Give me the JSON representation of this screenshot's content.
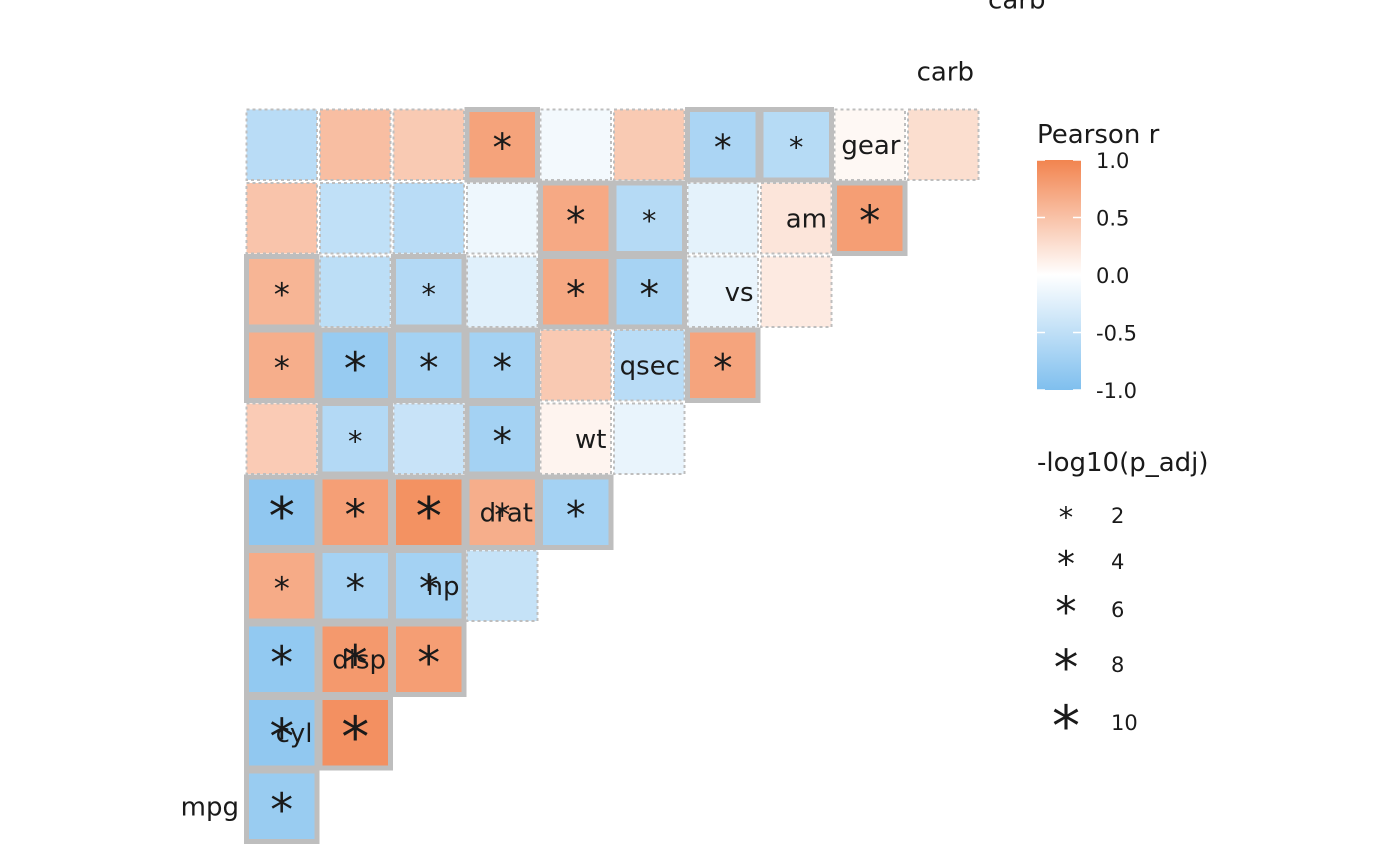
{
  "chart_data": {
    "type": "heatmap",
    "variables": [
      "mpg",
      "cyl",
      "disp",
      "hp",
      "drat",
      "wt",
      "qsec",
      "vs",
      "am",
      "gear",
      "carb"
    ],
    "cells": [
      {
        "row": "mpg",
        "col": "mpg",
        "r": -0.8,
        "p": 7,
        "sig": true
      },
      {
        "row": "mpg",
        "col": "cyl",
        "r": -0.86,
        "p": 8,
        "sig": true
      },
      {
        "row": "mpg",
        "col": "disp",
        "r": -0.85,
        "p": 7,
        "sig": true
      },
      {
        "row": "mpg",
        "col": "hp",
        "r": 0.68,
        "p": 3,
        "sig": true
      },
      {
        "row": "mpg",
        "col": "drat",
        "r": -0.87,
        "p": 9,
        "sig": true
      },
      {
        "row": "mpg",
        "col": "wt",
        "r": 0.42,
        "p": 0,
        "sig": false
      },
      {
        "row": "mpg",
        "col": "qsec",
        "r": 0.66,
        "p": 3,
        "sig": true
      },
      {
        "row": "mpg",
        "col": "vs",
        "r": 0.6,
        "p": 3,
        "sig": true
      },
      {
        "row": "mpg",
        "col": "am",
        "r": 0.48,
        "p": 0,
        "sig": false
      },
      {
        "row": "mpg",
        "col": "gear",
        "r": -0.55,
        "p": 0,
        "sig": false
      },
      {
        "row": "cyl",
        "col": "cyl",
        "r": 0.9,
        "p": 10,
        "sig": true
      },
      {
        "row": "cyl",
        "col": "disp",
        "r": 0.83,
        "p": 8,
        "sig": true
      },
      {
        "row": "cyl",
        "col": "hp",
        "r": -0.7,
        "p": 5,
        "sig": true
      },
      {
        "row": "cyl",
        "col": "drat",
        "r": 0.78,
        "p": 6,
        "sig": true
      },
      {
        "row": "cyl",
        "col": "wt",
        "r": -0.59,
        "p": 2,
        "sig": true
      },
      {
        "row": "cyl",
        "col": "qsec",
        "r": -0.81,
        "p": 7,
        "sig": true
      },
      {
        "row": "cyl",
        "col": "vs",
        "r": -0.52,
        "p": 0,
        "sig": false
      },
      {
        "row": "cyl",
        "col": "am",
        "r": -0.49,
        "p": 0,
        "sig": false
      },
      {
        "row": "cyl",
        "col": "gear",
        "r": 0.53,
        "p": 0,
        "sig": false
      },
      {
        "row": "disp",
        "col": "disp",
        "r": 0.79,
        "p": 7,
        "sig": true
      },
      {
        "row": "disp",
        "col": "hp",
        "r": -0.71,
        "p": 5,
        "sig": true
      },
      {
        "row": "disp",
        "col": "drat",
        "r": 0.89,
        "p": 9,
        "sig": true
      },
      {
        "row": "disp",
        "col": "wt",
        "r": -0.43,
        "p": 0,
        "sig": false
      },
      {
        "row": "disp",
        "col": "qsec",
        "r": -0.71,
        "p": 5,
        "sig": true
      },
      {
        "row": "disp",
        "col": "vs",
        "r": -0.59,
        "p": 2,
        "sig": true
      },
      {
        "row": "disp",
        "col": "am",
        "r": -0.55,
        "p": 0,
        "sig": false
      },
      {
        "row": "disp",
        "col": "gear",
        "r": 0.43,
        "p": 0,
        "sig": false
      },
      {
        "row": "hp",
        "col": "hp",
        "r": -0.45,
        "p": 0,
        "sig": false
      },
      {
        "row": "hp",
        "col": "drat",
        "r": 0.66,
        "p": 3,
        "sig": true
      },
      {
        "row": "hp",
        "col": "wt",
        "r": -0.71,
        "p": 5,
        "sig": true
      },
      {
        "row": "hp",
        "col": "qsec",
        "r": -0.71,
        "p": 5,
        "sig": true
      },
      {
        "row": "hp",
        "col": "vs",
        "r": -0.24,
        "p": 0,
        "sig": false
      },
      {
        "row": "hp",
        "col": "am",
        "r": -0.13,
        "p": 0,
        "sig": false
      },
      {
        "row": "hp",
        "col": "gear",
        "r": 0.75,
        "p": 5,
        "sig": true
      },
      {
        "row": "drat",
        "col": "drat",
        "r": -0.71,
        "p": 5,
        "sig": true
      },
      {
        "row": "drat",
        "col": "wt",
        "r": 0.09,
        "p": 0,
        "sig": false
      },
      {
        "row": "drat",
        "col": "qsec",
        "r": 0.44,
        "p": 0,
        "sig": false
      },
      {
        "row": "drat",
        "col": "vs",
        "r": 0.71,
        "p": 5,
        "sig": true
      },
      {
        "row": "drat",
        "col": "am",
        "r": 0.7,
        "p": 5,
        "sig": true
      },
      {
        "row": "drat",
        "col": "gear",
        "r": -0.09,
        "p": 0,
        "sig": false
      },
      {
        "row": "wt",
        "col": "wt",
        "r": -0.17,
        "p": 0,
        "sig": false
      },
      {
        "row": "wt",
        "col": "qsec",
        "r": -0.55,
        "p": 0,
        "sig": false
      },
      {
        "row": "wt",
        "col": "vs",
        "r": -0.69,
        "p": 5,
        "sig": true
      },
      {
        "row": "wt",
        "col": "am",
        "r": -0.58,
        "p": 2,
        "sig": true
      },
      {
        "row": "wt",
        "col": "gear",
        "r": 0.43,
        "p": 0,
        "sig": false
      },
      {
        "row": "qsec",
        "col": "qsec",
        "r": 0.74,
        "p": 5,
        "sig": true
      },
      {
        "row": "qsec",
        "col": "vs",
        "r": -0.17,
        "p": 0,
        "sig": false
      },
      {
        "row": "qsec",
        "col": "am",
        "r": -0.21,
        "p": 0,
        "sig": false
      },
      {
        "row": "qsec",
        "col": "gear",
        "r": -0.66,
        "p": 4,
        "sig": true
      },
      {
        "row": "vs",
        "col": "vs",
        "r": 0.17,
        "p": 0,
        "sig": false
      },
      {
        "row": "vs",
        "col": "am",
        "r": 0.21,
        "p": 0,
        "sig": false
      },
      {
        "row": "vs",
        "col": "gear",
        "r": -0.57,
        "p": 2,
        "sig": true
      },
      {
        "row": "am",
        "col": "am",
        "r": 0.79,
        "p": 6,
        "sig": true
      },
      {
        "row": "am",
        "col": "gear",
        "r": 0.06,
        "p": 0,
        "sig": false
      },
      {
        "row": "gear",
        "col": "gear",
        "r": 0.27,
        "p": 0,
        "sig": false
      }
    ],
    "color_legend": {
      "title": "Pearson r",
      "ticks": [
        1.0,
        0.5,
        0.0,
        -0.5,
        -1.0
      ],
      "tick_labels": [
        "1.0",
        "0.5",
        "0.0",
        "-0.5",
        "-1.0"
      ],
      "range": [
        -1,
        1
      ],
      "low_color": "#7fbfee",
      "mid_color": "#ffffff",
      "high_color": "#f2844f"
    },
    "size_legend": {
      "title": "-log10(p_adj)",
      "levels": [
        2,
        4,
        6,
        8,
        10
      ],
      "labels": [
        "2",
        "4",
        "6",
        "8",
        "10"
      ]
    },
    "sig_border_color": "#bebebe",
    "nonsig_border_color": "#bebebe"
  }
}
